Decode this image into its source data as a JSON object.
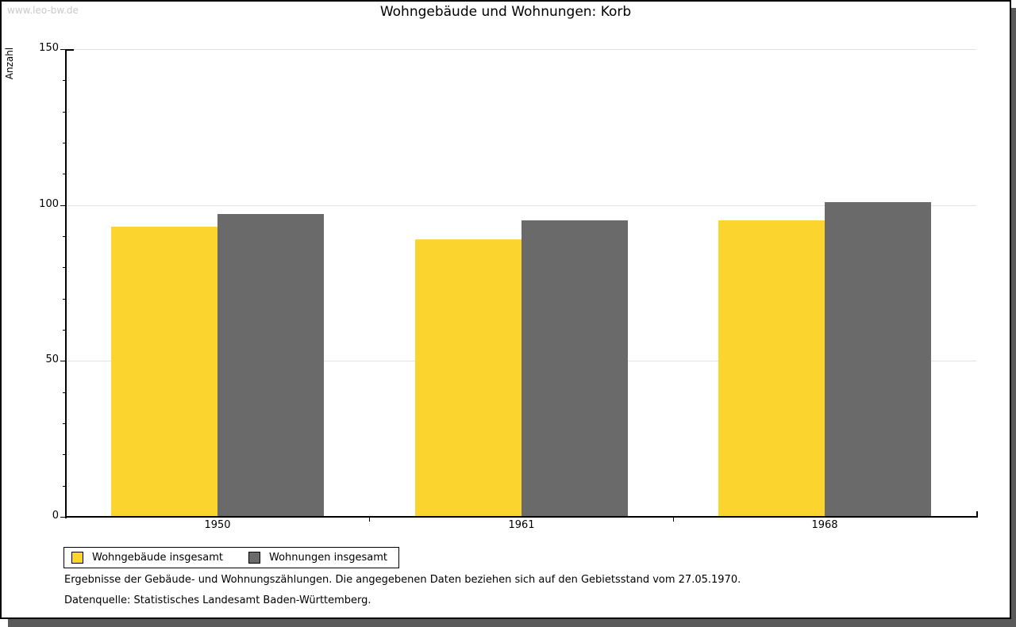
{
  "watermark": "www.leo-bw.de",
  "title": "Wohngebäude und Wohnungen: Korb",
  "chart_data": {
    "type": "bar",
    "title": "Wohngebäude und Wohnungen: Korb",
    "categories": [
      "1950",
      "1961",
      "1968"
    ],
    "series": [
      {
        "name": "Wohngebäude insgesamt",
        "color": "#fcd42e",
        "values": [
          93,
          89,
          95
        ]
      },
      {
        "name": "Wohnungen insgesamt",
        "color": "#6a6a6a",
        "values": [
          97,
          95,
          101
        ]
      }
    ],
    "xlabel": "",
    "ylabel": "Anzahl",
    "ylim": [
      0,
      150
    ],
    "y_major_step": 50,
    "y_minor_step": 10,
    "grid": true,
    "legend_position": "bottom-left",
    "colors": {
      "grid": "#e3e3e3",
      "axis": "#000000",
      "shadow": "#5a5a5a",
      "watermark": "#c9c9c9"
    }
  },
  "footer": {
    "note1": "Ergebnisse der Gebäude- und Wohnungszählungen. Die angegebenen Daten beziehen sich auf den Gebietsstand vom 27.05.1970.",
    "note2": "Datenquelle: Statistisches Landesamt Baden-Württemberg."
  }
}
